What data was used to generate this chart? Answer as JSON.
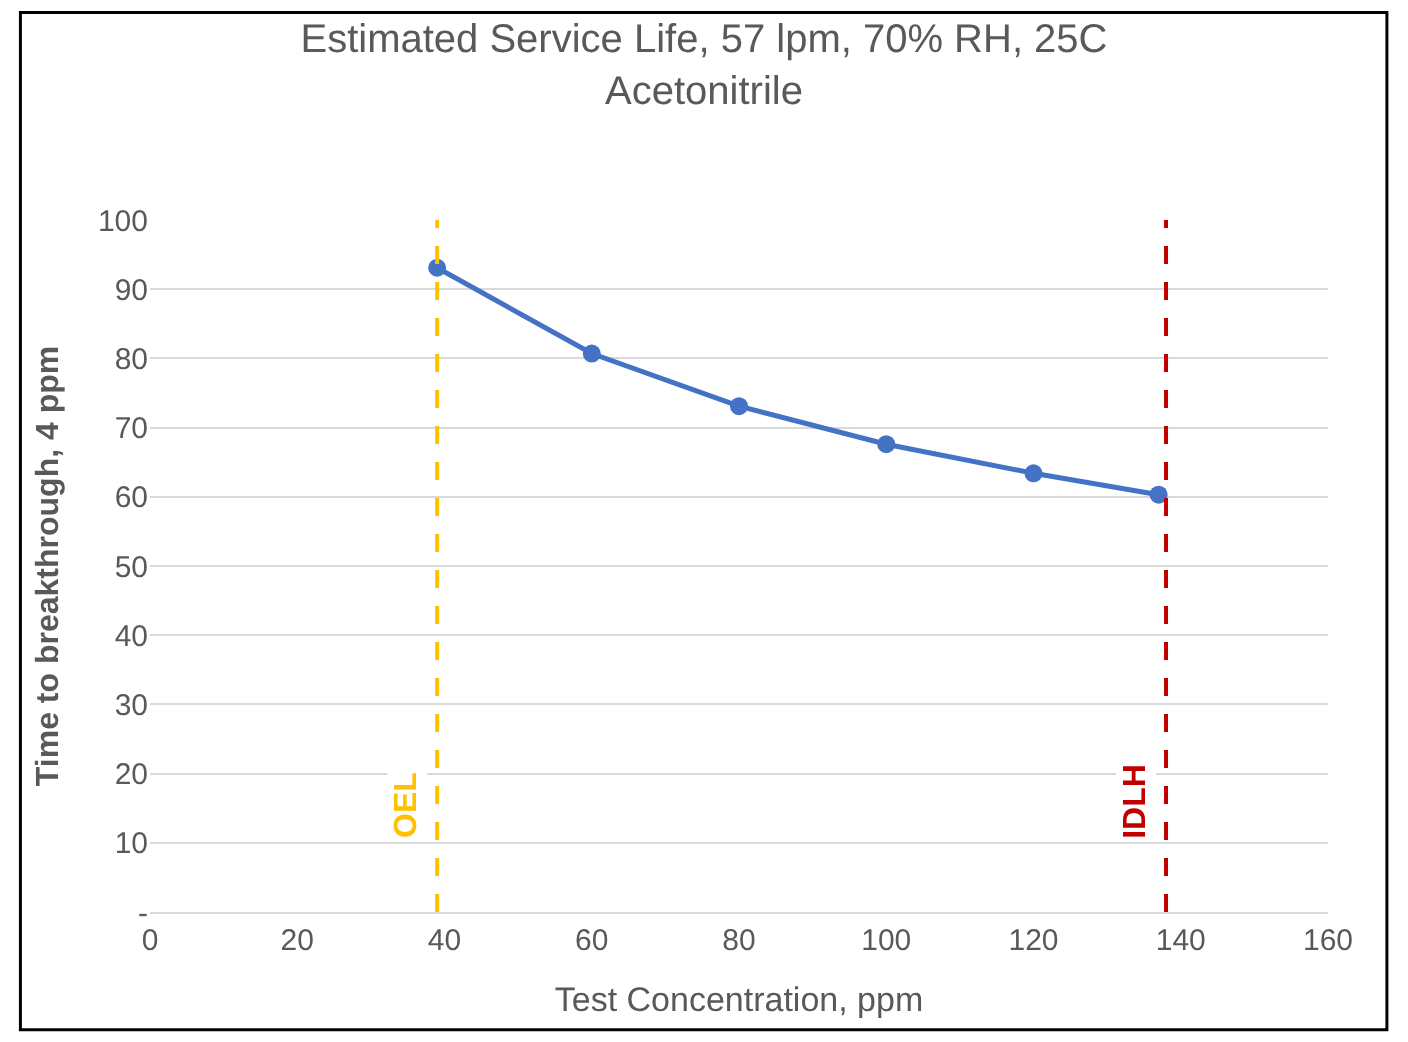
{
  "chart_data": {
    "type": "line",
    "title": "Estimated Service Life, 57 lpm, 70% RH, 25C",
    "subtitle": "Acetonitrile",
    "xlabel": "Test Concentration, ppm",
    "ylabel": "Time to breakthrough, 4 ppm",
    "x": [
      39,
      60,
      80,
      100,
      120,
      137
    ],
    "series": [
      {
        "color": "#4472c4",
        "values": [
          93.1,
          80.7,
          73.1,
          67.6,
          63.4,
          60.3
        ]
      }
    ],
    "xlim": [
      0,
      160
    ],
    "xticks": [
      0,
      20,
      40,
      60,
      80,
      100,
      120,
      140,
      160
    ],
    "ylim": [
      0,
      100
    ],
    "yticks": [
      {
        "value": 0,
        "label": "-"
      },
      10,
      20,
      30,
      40,
      50,
      60,
      70,
      80,
      90,
      100
    ],
    "grid": "y",
    "marker": "circle",
    "line_style": "solid",
    "ref_lines": [
      {
        "axis": "x",
        "value": 39,
        "label": "OEL",
        "color": "#ffc000",
        "line_style": "dashed"
      },
      {
        "axis": "x",
        "value": 138,
        "label": "IDLH",
        "color": "#c00000",
        "line_style": "dashed"
      }
    ]
  }
}
